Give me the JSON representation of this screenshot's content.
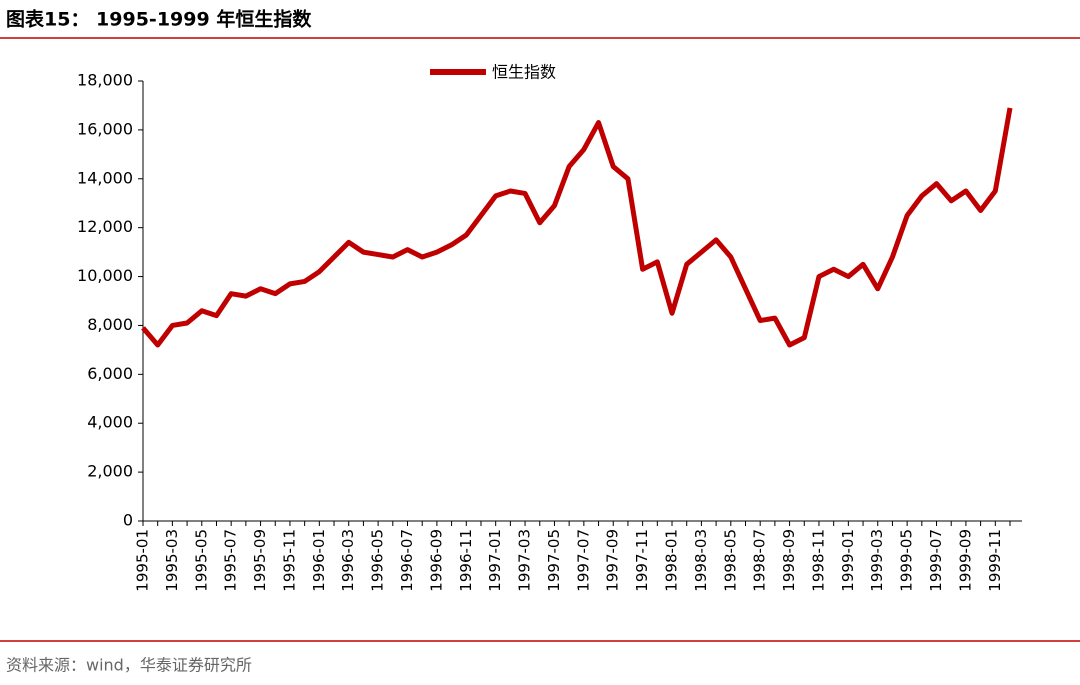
{
  "header": {
    "title": "图表15： 1995-1999 年恒生指数"
  },
  "chart_data": {
    "type": "line",
    "x": [
      "1995-01",
      "1995-02",
      "1995-03",
      "1995-04",
      "1995-05",
      "1995-06",
      "1995-07",
      "1995-08",
      "1995-09",
      "1995-10",
      "1995-11",
      "1995-12",
      "1996-01",
      "1996-02",
      "1996-03",
      "1996-04",
      "1996-05",
      "1996-06",
      "1996-07",
      "1996-08",
      "1996-09",
      "1996-10",
      "1996-11",
      "1996-12",
      "1997-01",
      "1997-02",
      "1997-03",
      "1997-04",
      "1997-05",
      "1997-06",
      "1997-07",
      "1997-08",
      "1997-09",
      "1997-10",
      "1997-11",
      "1997-12",
      "1998-01",
      "1998-02",
      "1998-03",
      "1998-04",
      "1998-05",
      "1998-06",
      "1998-07",
      "1998-08",
      "1998-09",
      "1998-10",
      "1998-11",
      "1998-12",
      "1999-01",
      "1999-02",
      "1999-03",
      "1999-04",
      "1999-05",
      "1999-06",
      "1999-07",
      "1999-08",
      "1999-09",
      "1999-10",
      "1999-11",
      "1999-12"
    ],
    "xticks": [
      "1995-01",
      "1995-03",
      "1995-05",
      "1995-07",
      "1995-09",
      "1995-11",
      "1996-01",
      "1996-03",
      "1996-05",
      "1996-07",
      "1996-09",
      "1996-11",
      "1997-01",
      "1997-03",
      "1997-05",
      "1997-07",
      "1997-09",
      "1997-11",
      "1998-01",
      "1998-03",
      "1998-05",
      "1998-07",
      "1998-09",
      "1998-11",
      "1999-01",
      "1999-03",
      "1999-05",
      "1999-07",
      "1999-09",
      "1999-11"
    ],
    "series": [
      {
        "name": "恒生指数",
        "color": "#c00000",
        "values": [
          7900,
          7200,
          8000,
          8100,
          8600,
          8400,
          9300,
          9200,
          9500,
          9300,
          9700,
          9800,
          10200,
          10800,
          11400,
          11000,
          10900,
          10800,
          11100,
          10800,
          11000,
          11300,
          11700,
          12500,
          13300,
          13500,
          13400,
          12200,
          12900,
          14500,
          15200,
          16300,
          14500,
          14000,
          10300,
          10600,
          8500,
          10500,
          11000,
          11500,
          10800,
          9500,
          8200,
          8300,
          7200,
          7500,
          10000,
          10300,
          10000,
          10500,
          9500,
          10800,
          12500,
          13300,
          13800,
          13100,
          13500,
          12700,
          13500,
          16900
        ]
      }
    ],
    "ylim": [
      0,
      18000
    ],
    "yticks": [
      0,
      {
        "value": 2000,
        "label": "2,000"
      },
      {
        "value": 4000,
        "label": "4,000"
      },
      {
        "value": 6000,
        "label": "6,000"
      },
      {
        "value": 8000,
        "label": "8,000"
      },
      {
        "value": 10000,
        "label": "10,000"
      },
      {
        "value": 12000,
        "label": "12,000"
      },
      {
        "value": 14000,
        "label": "14,000"
      },
      {
        "value": 16000,
        "label": "16,000"
      },
      {
        "value": 18000,
        "label": "18,000"
      }
    ],
    "grid": false
  },
  "footer": {
    "source": "资料来源：wind，华泰证券研究所"
  }
}
